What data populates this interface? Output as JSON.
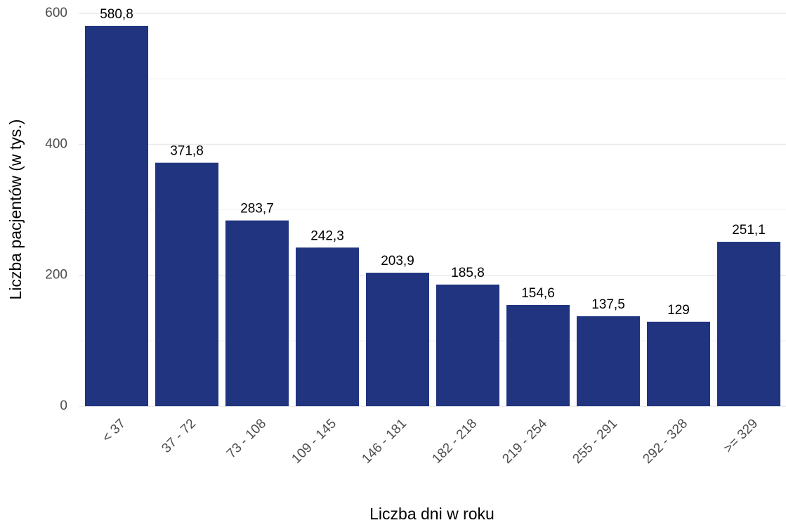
{
  "chart_data": {
    "type": "bar",
    "x_label": "Liczba dni w roku",
    "y_label": "Liczba pacjentów (w tys.)",
    "categories": [
      "< 37",
      "37 - 72",
      "73 - 108",
      "109 - 145",
      "146 - 181",
      "182 - 218",
      "219 - 254",
      "255 - 291",
      "292 - 328",
      ">= 329"
    ],
    "values": [
      580.8,
      371.8,
      283.7,
      242.3,
      203.9,
      185.8,
      154.6,
      137.5,
      129,
      251.1
    ],
    "value_labels": [
      "580,8",
      "371,8",
      "283,7",
      "242,3",
      "203,9",
      "185,8",
      "154,6",
      "137,5",
      "129",
      "251,1"
    ],
    "color": "#20347f",
    "ylim": [
      0,
      600
    ],
    "yticks": [
      0,
      200,
      400,
      600
    ],
    "minor_yticks": [
      100,
      300,
      500
    ],
    "grid": true
  }
}
